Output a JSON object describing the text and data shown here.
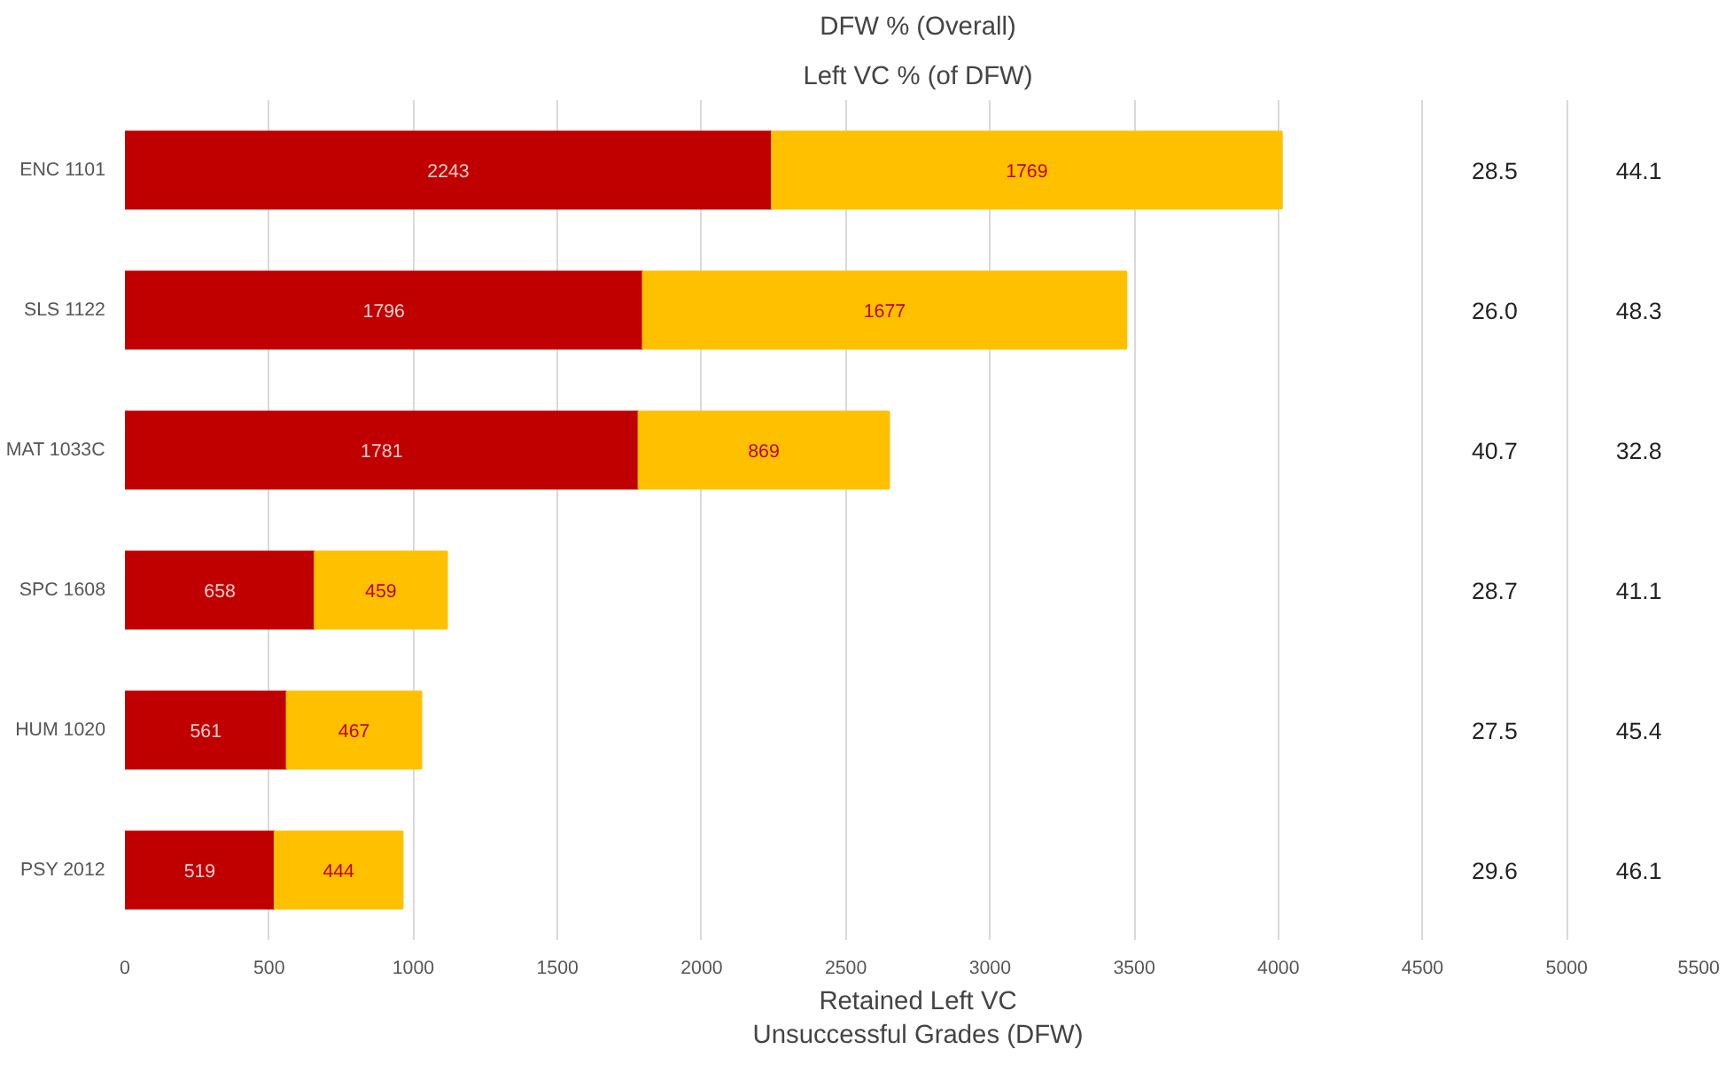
{
  "chart_data": {
    "type": "bar",
    "orientation": "horizontal",
    "stacked": true,
    "title": "DFW % (Overall)",
    "subtitle": "Left VC % (of DFW)",
    "xlabel": "Retained Left VC\nUnsuccessful Grades (DFW)",
    "categories": [
      "ENC 1101",
      "SLS 1122",
      "MAT 1033C",
      "SPC 1608",
      "HUM 1020",
      "PSY 2012"
    ],
    "series": [
      {
        "color": "#c00000",
        "values": [
          2243,
          1796,
          1781,
          658,
          561,
          519
        ]
      },
      {
        "color": "#ffc000",
        "values": [
          1769,
          1677,
          869,
          459,
          467,
          444
        ]
      }
    ],
    "data_labels": true,
    "xlim": [
      0,
      5500
    ],
    "xticks": [
      0,
      500,
      1000,
      1500,
      2000,
      2500,
      3000,
      3500,
      4000,
      4500,
      5000,
      5500
    ],
    "grid": "x",
    "annotations": [
      "28.5",
      "44.1",
      "26.0",
      "48.3",
      "40.7",
      "32.8",
      "28.7",
      "41.1",
      "27.5",
      "45.4",
      "29.6",
      "46.1"
    ]
  }
}
